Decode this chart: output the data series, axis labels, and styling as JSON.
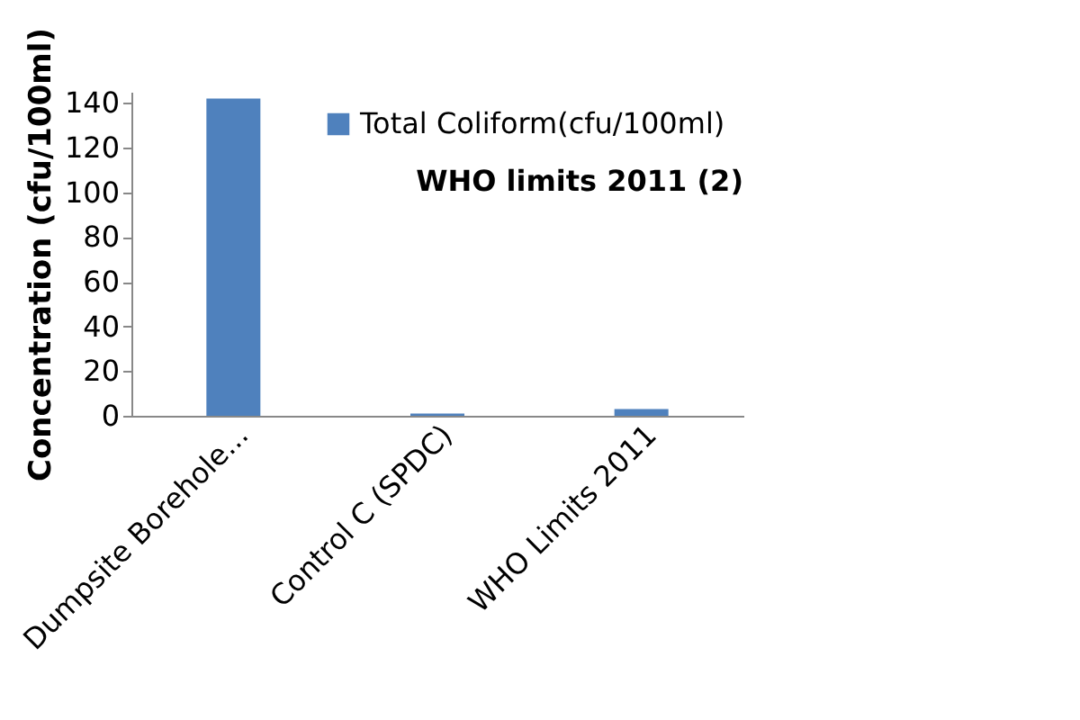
{
  "chart_data": {
    "type": "bar",
    "categories": [
      "Dumpsite Borehole...",
      "Control C (SPDC)",
      "WHO Limits 2011"
    ],
    "series": [
      {
        "name": "Total Coliform(cfu/100ml)",
        "color": "#4f81bd",
        "values": [
          142,
          1,
          3
        ]
      }
    ],
    "ylabel": "Concentration (cfu/100ml)",
    "ylim": [
      0,
      145
    ],
    "yticks": [
      0,
      20,
      40,
      60,
      80,
      100,
      120,
      140
    ],
    "annotations": [
      "WHO limits 2011 (2)"
    ],
    "legend": "top right",
    "grid": false
  }
}
